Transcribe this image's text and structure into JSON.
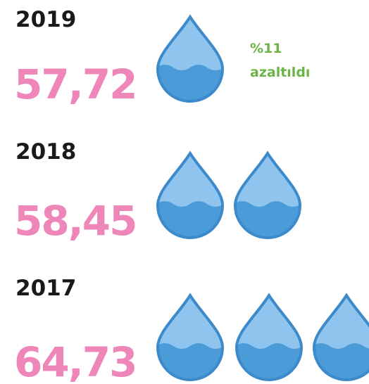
{
  "rows": [
    {
      "year": "2019",
      "value": "57,72",
      "note": [
        "%11",
        "azaltıldı"
      ]
    },
    {
      "year": "2018",
      "value": "58,45"
    },
    {
      "year": "2017",
      "value": "64,73"
    }
  ]
}
